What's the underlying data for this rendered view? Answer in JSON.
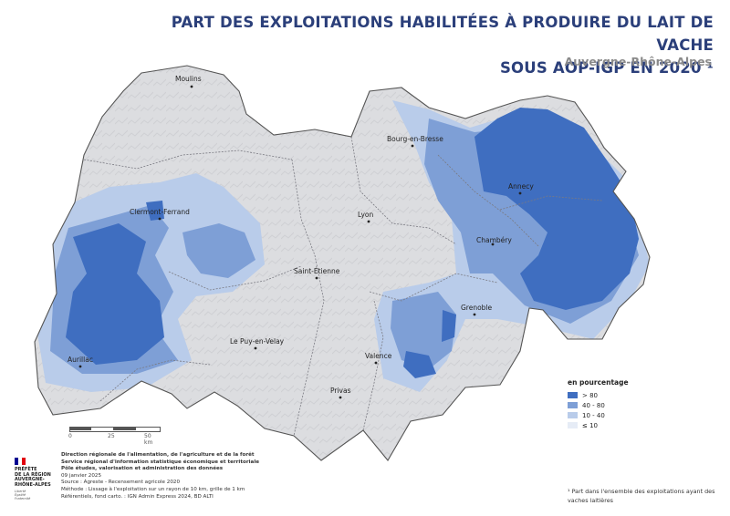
{
  "title_line1": "PART DES EXPLOITATIONS HABILITÉES À PRODUIRE DU LAIT DE VACHE",
  "title_line2": "SOUS AOP-IGP EN 2020 ¹",
  "subtitle": "Auvergne-Rhône-Alpes",
  "cities": {
    "moulins": "Moulins",
    "bourg": "Bourg-en-Bresse",
    "clermont": "Clermont-Ferrand",
    "lyon": "Lyon",
    "annecy": "Annecy",
    "chambery": "Chambéry",
    "saint_etienne": "Saint-Étienne",
    "grenoble": "Grenoble",
    "le_puy": "Le Puy-en-Velay",
    "aurillac": "Aurillac",
    "valence": "Valence",
    "privas": "Privas"
  },
  "legend": {
    "title": "en pourcentage",
    "classes": [
      {
        "label": "> 80",
        "color": "#3f6ec0"
      },
      {
        "label": "40 - 80",
        "color": "#7e9fd6"
      },
      {
        "label": "10 - 40",
        "color": "#b9ccea"
      },
      {
        "label": "≤ 10",
        "color": "#e6ecf6"
      }
    ]
  },
  "scale": {
    "l0": "0",
    "l1": "25",
    "l2": "50 km"
  },
  "logo": {
    "text": "PRÉFÈTE\nDE LA RÉGION\nAUVERGNE-\nRHÔNE-ALPES",
    "motto": "Liberté\nÉgalité\nFraternité",
    "flag_colors": [
      "#000091",
      "#ffffff",
      "#e1000f"
    ]
  },
  "credits": {
    "line1": "Direction régionale de l'alimentation, de l'agriculture et de la forêt",
    "line2": "Service régional d'information statistique économique et territoriale",
    "line3": "Pôle études, valorisation et administration des données",
    "date": "09 janvier 2025",
    "source": "Source : Agreste - Recensement agricole 2020",
    "method": "Méthode : Lissage à l'exploitation sur un rayon de 10 km, grille de 1 km",
    "refs": "Référentiels, fond carto. : IGN Admin Express 2024, BD ALTI"
  },
  "footnote": "¹ Part dans l'ensemble des exploitations ayant des vaches laitières"
}
